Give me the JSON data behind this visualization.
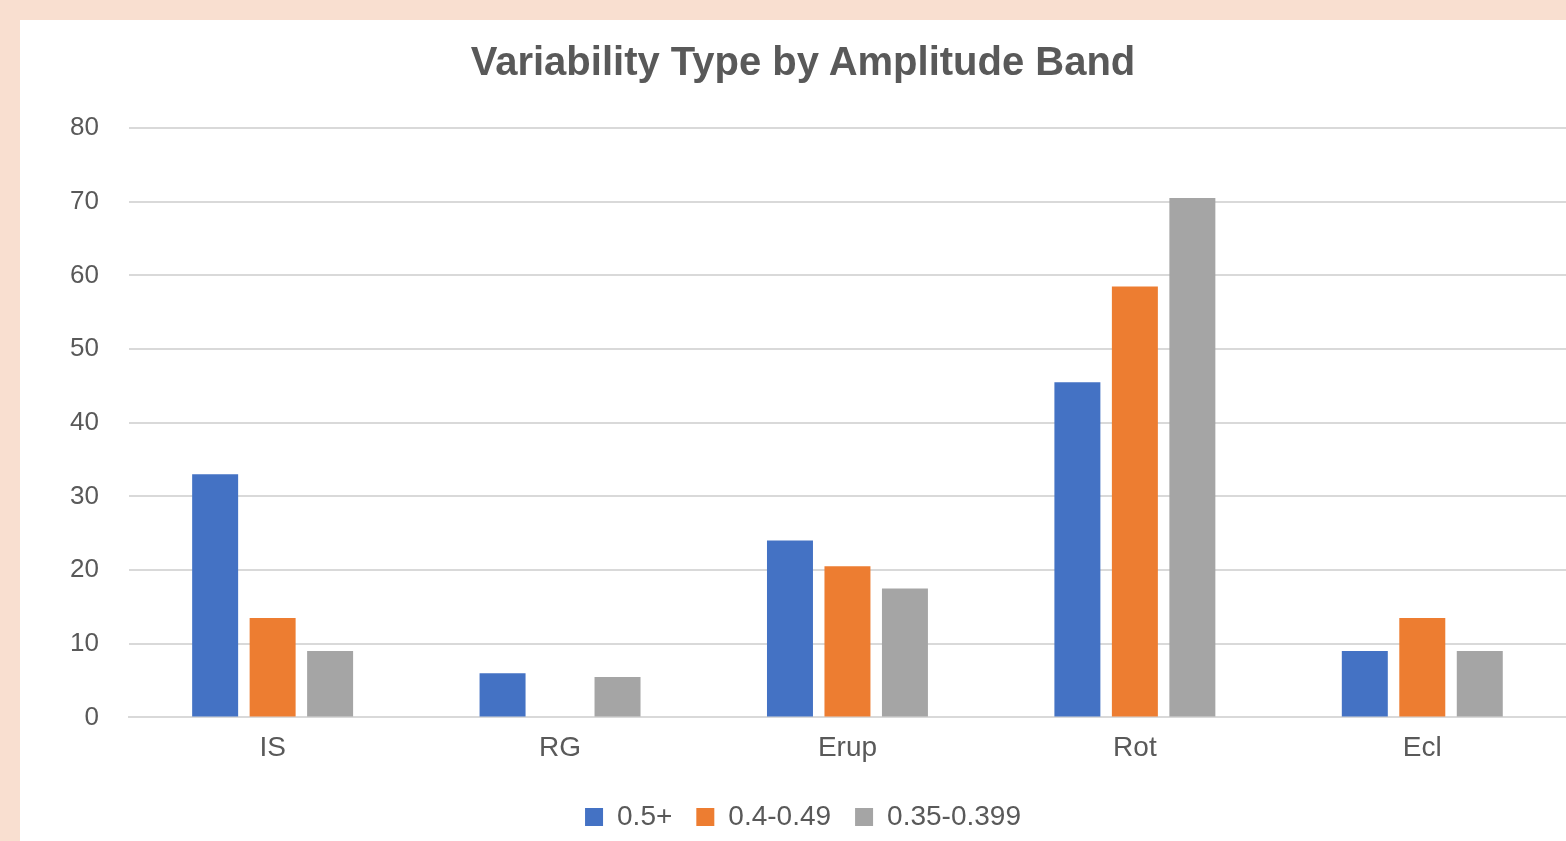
{
  "chart_data": {
    "type": "bar",
    "title": "Variability Type by Amplitude Band",
    "categories": [
      "IS",
      "RG",
      "Erup",
      "Rot",
      "Ecl"
    ],
    "series": [
      {
        "name": "0.5+",
        "color": "#4472c4",
        "values": [
          33,
          6,
          24,
          45.5,
          9
        ]
      },
      {
        "name": "0.4-0.49",
        "color": "#ed7d31",
        "values": [
          13.5,
          0,
          20.5,
          58.5,
          13.5
        ]
      },
      {
        "name": "0.35-0.399",
        "color": "#a5a5a5",
        "values": [
          9,
          5.5,
          17.5,
          70.5,
          9
        ]
      }
    ],
    "ylim": [
      0,
      80
    ],
    "yticks": [
      0,
      10,
      20,
      30,
      40,
      50,
      60,
      70,
      80
    ],
    "grid": "y",
    "legend": "bottom"
  }
}
